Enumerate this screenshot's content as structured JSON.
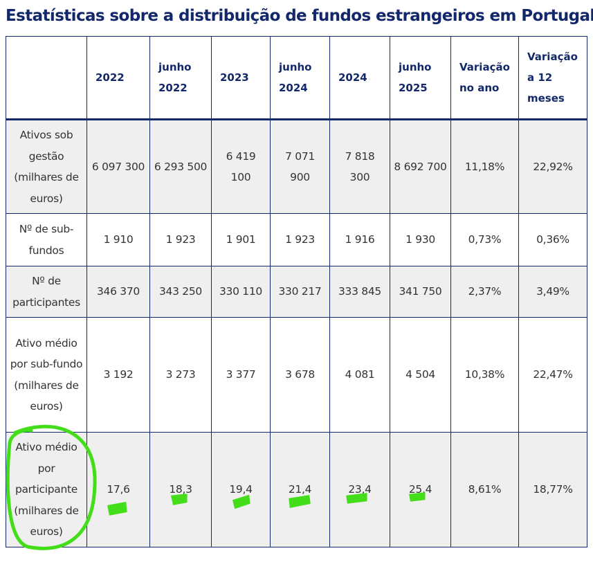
{
  "title": "Estatísticas sobre a distribuição de fundos estrangeiros em Portugal",
  "table": {
    "header": [
      "2022",
      "junho 2022",
      "2023",
      "junho 2024",
      "2024",
      "junho 2025",
      "Variação no ano",
      "Variação a 12 meses"
    ],
    "rows": [
      [
        "Ativos sob gestão (milhares de euros)",
        "6 097 300",
        "6 293 500",
        "6 419 100",
        "7 071 900",
        "7 818 300",
        "8 692 700",
        "11,18%",
        "22,92%"
      ],
      [
        "Nº de sub-fundos",
        "1 910",
        "1 923",
        "1 901",
        "1 923",
        "1 916",
        "1 930",
        "0,73%",
        "0,36%"
      ],
      [
        "Nº de participantes",
        "346 370",
        "343 250",
        "330 110",
        "330 217",
        "333 845",
        "341 750",
        "2,37%",
        "3,49%"
      ],
      [
        "Ativo médio por sub-fundo (milhares de euros)",
        "3 192",
        "3 273",
        "3 377",
        "3 678",
        "4 081",
        "4 504",
        "10,38%",
        "22,47%"
      ],
      [
        "Ativo médio por participante (milhares de euros)",
        "17,6",
        "18,3",
        "19,4",
        "21,4",
        "23,4",
        "25,4",
        "8,61%",
        "18,77%"
      ]
    ]
  }
}
